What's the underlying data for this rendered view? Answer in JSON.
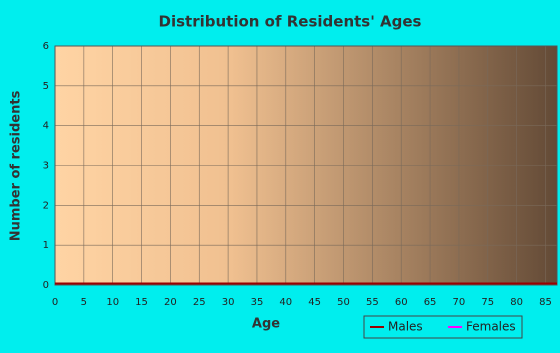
{
  "chart_data": {
    "type": "line",
    "title": "Distribution of Residents' Ages",
    "x_label": "Age",
    "y_label": "Number of residents",
    "x": [
      0,
      87
    ],
    "series": [
      {
        "name": "Males",
        "color": "#990000",
        "values": [
          0,
          0
        ]
      },
      {
        "name": "Females",
        "color": "#ff00ff",
        "values": [
          0,
          0
        ]
      }
    ],
    "xlim": [
      0,
      87
    ],
    "xticks": [
      0,
      5,
      10,
      15,
      20,
      25,
      30,
      35,
      40,
      45,
      50,
      55,
      60,
      65,
      70,
      75,
      80,
      85
    ],
    "ylim": [
      0,
      6
    ],
    "yticks": [
      0,
      1,
      2,
      3,
      4,
      5,
      6
    ],
    "grid": true,
    "legend": "bottom-right"
  }
}
